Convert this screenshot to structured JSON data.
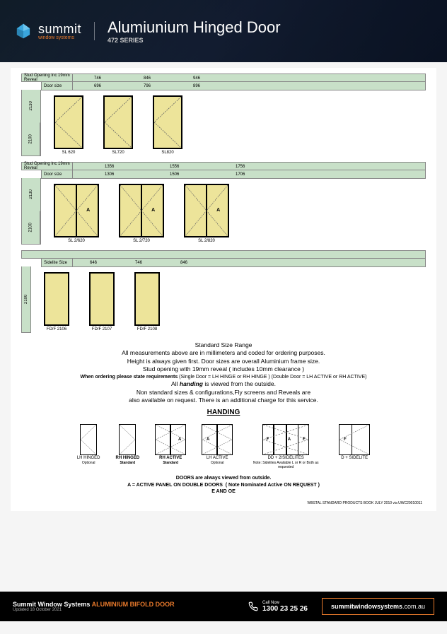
{
  "header": {
    "logo_name": "summit",
    "logo_sub": "window systems",
    "title": "Alumiunium Hinged Door",
    "series": "472 SERIES",
    "logo_color": "#3aa6dd",
    "accent_color": "#e7792b"
  },
  "colors": {
    "panel_green": "#c8e0c8",
    "door_fill": "#ede49a",
    "border": "#888888",
    "dash": "#666666"
  },
  "section1": {
    "row1_label": "Stud Opening Inc 19mm Reveal",
    "row1_vals": [
      "746",
      "846",
      "946"
    ],
    "row2_label": "Door size",
    "row2_vals": [
      "696",
      "796",
      "896"
    ],
    "v_outer": "2130",
    "v_inner": "2100",
    "val_positions": [
      30,
      100,
      170
    ],
    "doors": [
      {
        "label": "SL 620"
      },
      {
        "label": "SL720"
      },
      {
        "label": "SL820"
      }
    ]
  },
  "section2": {
    "row1_label": "Stud Opening Inc 19mm Reveal",
    "row1_vals": [
      "1356",
      "1556",
      "1756"
    ],
    "row2_label": "Door size",
    "row2_vals": [
      "1306",
      "1506",
      "1706"
    ],
    "v_outer": "2130",
    "v_inner": "2100",
    "val_positions": [
      45,
      137,
      230
    ],
    "doors": [
      {
        "label": "SL 2/620"
      },
      {
        "label": "SL 2/720"
      },
      {
        "label": "SL 2/820"
      }
    ],
    "a_mark": "A"
  },
  "section3": {
    "row1_label": "Sidelite Size",
    "row1_vals": [
      "646",
      "746",
      "846"
    ],
    "v_inner": "2100",
    "val_positions": [
      24,
      88,
      152
    ],
    "doors": [
      {
        "label": "FD/F 2106"
      },
      {
        "label": "FD/F 2107"
      },
      {
        "label": "FD/F 2108"
      }
    ]
  },
  "notes": {
    "line1": "Standard Size Range",
    "line2": "All measurements above are in millimeters and coded for ordering purposes.",
    "line3": "Height is always given first. Door sizes are overall Aluminium frame size.",
    "line4": "Stud opening with 19mm reveal ( includes 10mm clearance )",
    "line5a": "When ordering please state requirements",
    "line5b": "(Single Door = LH HINGE or RH HINGE ) (Double Door = LH ACTIVE or RH ACTIVE)",
    "line6a": "All",
    "line6b": "handing",
    "line6c": "is viewed from the outside.",
    "line7": "Non standard sizes & configurations,Fly screens and Reveals are",
    "line8": "also available on request. There is an additional charge for this service.",
    "handing_title": "HANDING",
    "footer1": "DOORS are always viewed from outside.",
    "footer2a": "A = ACTIVE PANEL ON DOUBLE DOORS",
    "footer2b": "( Note Nominated Active ON REQUEST )",
    "footer3": "E AND OE"
  },
  "handing": [
    {
      "width": 24,
      "name": "LH HINGED",
      "sub": "Optional",
      "type": "single",
      "dir": "left"
    },
    {
      "width": 24,
      "name": "RH HINGED",
      "sub": "Standard",
      "bold": true,
      "type": "single",
      "dir": "right"
    },
    {
      "width": 44,
      "name": "RH ACTIVE",
      "sub": "Standard",
      "bold": true,
      "type": "double",
      "a_pos": "right"
    },
    {
      "width": 44,
      "name": "LH ACTIVE",
      "sub": "Optional",
      "type": "double",
      "a_pos": "left"
    },
    {
      "width": 66,
      "name": "DD + 2/SIDELITES",
      "sub": "Note: Sidelites Available L or R or Both as requested",
      "type": "dd2side"
    },
    {
      "width": 44,
      "name": "D + SIDELITE",
      "sub": "",
      "type": "dside"
    }
  ],
  "footnote": "WBSTAL STANDARD PRODUCTS BOOK JULY 2010 via UWC20010011",
  "footer": {
    "company": "Summit Window Systems",
    "product": "ALUMINIUM BIFOLD DOOR",
    "updated": "Updated 18 October 2021",
    "call_label": "Call Now",
    "phone": "1300 23 25 26",
    "site_bold": "summitwindowsystems",
    "site_rest": ".com.au"
  }
}
